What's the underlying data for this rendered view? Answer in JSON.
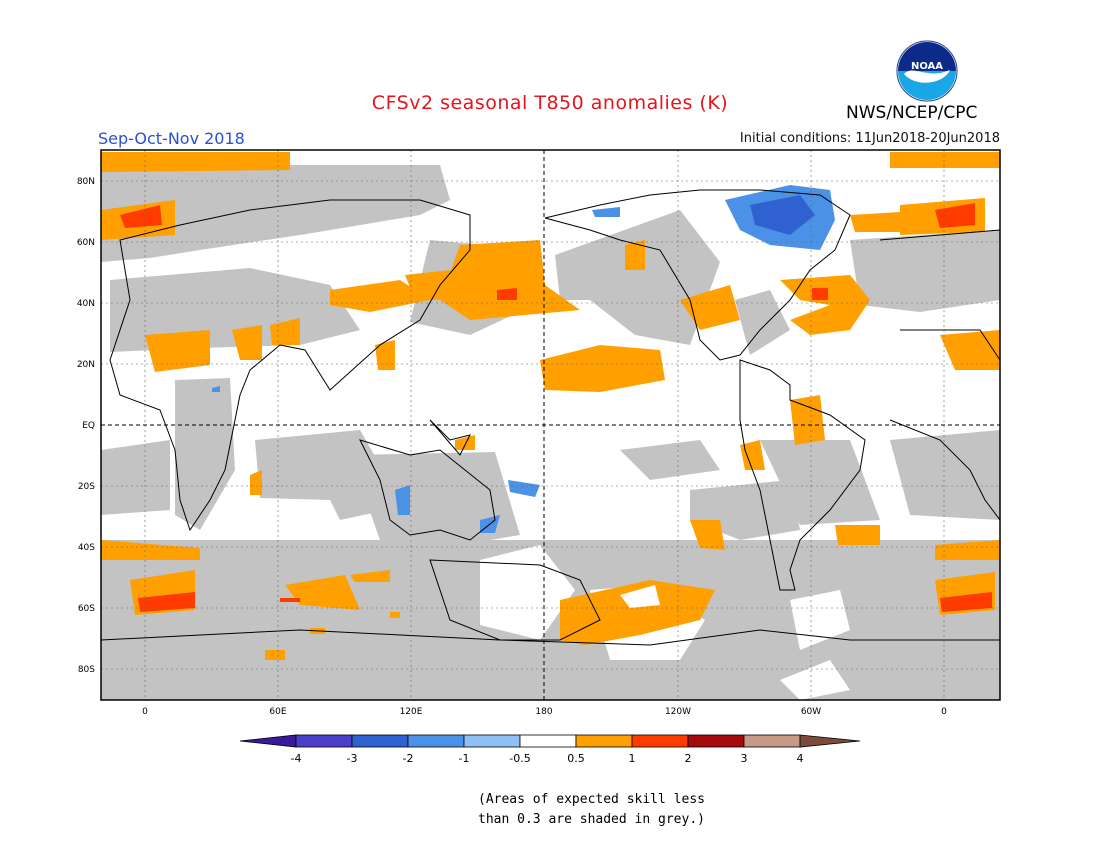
{
  "header": {
    "title": "CFSv2 seasonal T850 anomalies (K)",
    "period": "Sep-Oct-Nov 2018",
    "initial_conditions": "Initial conditions: 11Jun2018-20Jun2018",
    "agency": "NWS/NCEP/CPC",
    "logo_text": "NOAA"
  },
  "map": {
    "lat_labels": [
      "80N",
      "60N",
      "40N",
      "20N",
      "EQ",
      "20S",
      "40S",
      "60S",
      "80S"
    ],
    "lon_labels": [
      "0",
      "60E",
      "120E",
      "180",
      "120W",
      "60W",
      "0"
    ]
  },
  "colorbar": {
    "labels": [
      "-4",
      "-3",
      "-2",
      "-1",
      "-0.5",
      "0.5",
      "1",
      "2",
      "3",
      "4"
    ],
    "colors": [
      "#3a1a9c",
      "#4b3ec8",
      "#2f62d0",
      "#4b92e6",
      "#8ec0f3",
      "#ffffff",
      "#ff9f00",
      "#ff3b00",
      "#a50a0a",
      "#c79a88",
      "#7d4a3c"
    ]
  },
  "footnote": {
    "line1": "(Areas of expected skill less",
    "line2": "than 0.3 are shaded in grey.)"
  }
}
